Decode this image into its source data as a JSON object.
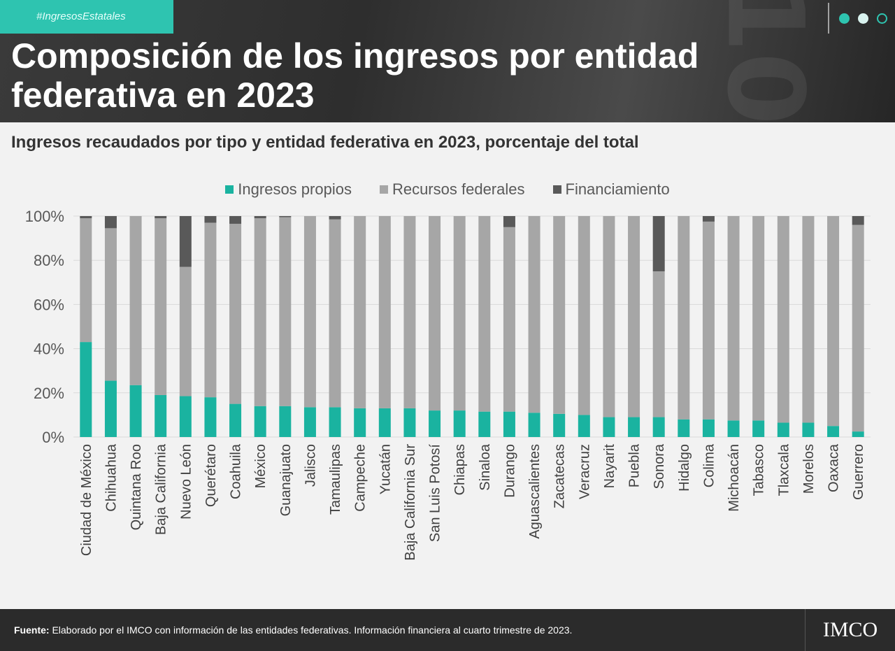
{
  "header": {
    "tag": "#IngresosEstatales",
    "title": "Composición de los ingresos por entidad federativa en 2023"
  },
  "subtitle": "Ingresos recaudados por tipo y entidad federativa en 2023, porcentaje del total",
  "footer": {
    "source_label": "Fuente:",
    "source_text": " Elaborado por el IMCO con información de las entidades federativas. Información financiera al cuarto trimestre de 2023.",
    "logo": "IMCO"
  },
  "colors": {
    "propios": "#1ab3a0",
    "federales": "#a6a6a6",
    "financiamiento": "#595959",
    "accent": "#2ec4b0"
  },
  "chart_data": {
    "type": "bar",
    "stacked": true,
    "ylim": [
      0,
      100
    ],
    "yticks": [
      "0%",
      "20%",
      "40%",
      "60%",
      "80%",
      "100%"
    ],
    "legend_position": "top-center",
    "grid": true,
    "categories": [
      "Ciudad de México",
      "Chihuahua",
      "Quintana Roo",
      "Baja California",
      "Nuevo León",
      "Querétaro",
      "Coahuila",
      "México",
      "Guanajuato",
      "Jalisco",
      "Tamaulipas",
      "Campeche",
      "Yucatán",
      "Baja California Sur",
      "San Luis Potosí",
      "Chiapas",
      "Sinaloa",
      "Durango",
      "Aguascalientes",
      "Zacatecas",
      "Veracruz",
      "Nayarit",
      "Puebla",
      "Sonora",
      "Hidalgo",
      "Colima",
      "Michoacán",
      "Tabasco",
      "Tlaxcala",
      "Morelos",
      "Oaxaca",
      "Guerrero"
    ],
    "series": [
      {
        "name": "Ingresos propios",
        "values": [
          43,
          25.5,
          23.5,
          19,
          18.5,
          18,
          15,
          14,
          14,
          13.5,
          13.5,
          13,
          13,
          13,
          12,
          12,
          11.5,
          11.5,
          11,
          10.5,
          10,
          9,
          9,
          9,
          8,
          8,
          7.5,
          7.5,
          6.5,
          6.5,
          5,
          2.5
        ]
      },
      {
        "name": "Recursos federales",
        "values": [
          56,
          69,
          76.5,
          80,
          58.5,
          79,
          81.5,
          85,
          85.5,
          86.5,
          85,
          87,
          87,
          87,
          88,
          88,
          88.5,
          83.5,
          89,
          89.5,
          90,
          91,
          91,
          66,
          92,
          89.5,
          92.5,
          92.5,
          93.5,
          93.5,
          95,
          93.5
        ]
      },
      {
        "name": "Financiamiento",
        "values": [
          1,
          5.5,
          0,
          1,
          23,
          3,
          3.5,
          1,
          0.5,
          0,
          1.5,
          0,
          0,
          0,
          0,
          0,
          0,
          5,
          0,
          0,
          0,
          0,
          0,
          25,
          0,
          2.5,
          0,
          0,
          0,
          0,
          0,
          4
        ]
      }
    ]
  }
}
